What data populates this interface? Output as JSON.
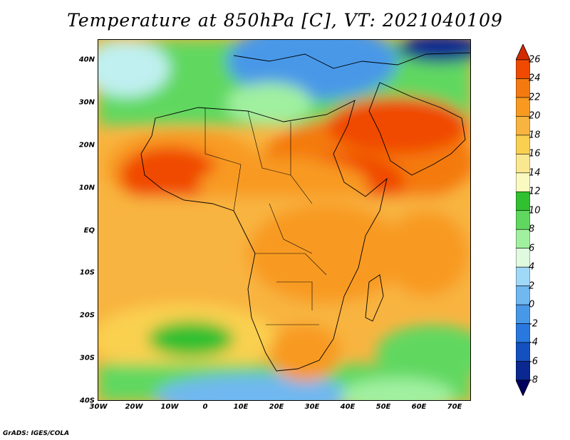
{
  "title": "Temperature at 850hPa [C], VT: 2021040109",
  "credit": "GrADS: IGES/COLA",
  "map": {
    "region": "Africa, Mediterranean, Arabian Peninsula",
    "lon_range": [
      -30,
      75
    ],
    "lat_range": [
      -40,
      45
    ],
    "lat_labels": [
      "40N",
      "30N",
      "20N",
      "10N",
      "EQ",
      "10S",
      "20S",
      "30S",
      "40S"
    ],
    "lon_labels": [
      "30W",
      "20W",
      "10W",
      "0",
      "10E",
      "20E",
      "30E",
      "40E",
      "50E",
      "60E",
      "70E"
    ]
  },
  "colorbar": {
    "labels": [
      "26",
      "24",
      "22",
      "20",
      "18",
      "16",
      "14",
      "12",
      "10",
      "8",
      "6",
      "4",
      "2",
      "0",
      "-2",
      "-4",
      "-6",
      "-8"
    ],
    "colors": [
      "#d42a00",
      "#f04a00",
      "#f47a10",
      "#f89a20",
      "#f8b440",
      "#fad050",
      "#fae890",
      "#fafac0",
      "#30c030",
      "#60d860",
      "#a0f0a0",
      "#e0fae0",
      "#a0d8f8",
      "#70b8f0",
      "#4898e8",
      "#2878e0",
      "#1450c0",
      "#0a2890",
      "#000060"
    ]
  },
  "chart_data": {
    "type": "heatmap",
    "title": "Temperature at 850hPa [C], VT: 2021040109",
    "xlabel": "",
    "ylabel": "",
    "x_range": [
      -30,
      75
    ],
    "y_range": [
      -40,
      45
    ],
    "color_levels": [
      -8,
      -6,
      -4,
      -2,
      0,
      2,
      4,
      6,
      8,
      10,
      12,
      14,
      16,
      18,
      20,
      22,
      24,
      26
    ]
  }
}
